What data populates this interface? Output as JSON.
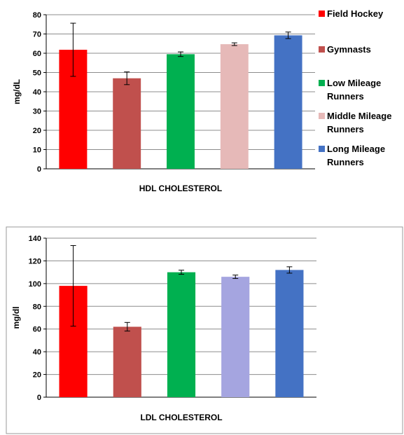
{
  "chart_data": [
    {
      "type": "bar",
      "title": "",
      "xlabel": "HDL CHOLESTEROL",
      "ylabel": "mg/dL",
      "ylim": [
        0,
        80
      ],
      "yticks": [
        0,
        10,
        20,
        30,
        40,
        50,
        60,
        70,
        80
      ],
      "grid": true,
      "legend": "right",
      "categories": [
        "Field Hockey",
        "Gymnasts",
        "Low Mileage Runners",
        "Middle Mileage Runners",
        "Long Mileage Runners"
      ],
      "colors": [
        "#ff0000",
        "#c0504d",
        "#00b050",
        "#e6b9b8",
        "#4472c4"
      ],
      "values": [
        61.8,
        47,
        59.5,
        64.7,
        69.3
      ],
      "error": [
        13.8,
        3.3,
        1.2,
        0.7,
        1.7
      ]
    },
    {
      "type": "bar",
      "title": "",
      "xlabel": "LDL CHOLESTEROL",
      "ylabel": "mg/dl",
      "ylim": [
        0,
        140
      ],
      "yticks": [
        0,
        20,
        40,
        60,
        80,
        100,
        120,
        140
      ],
      "grid": true,
      "categories": [
        "Field Hockey",
        "Gymnasts",
        "Low Mileage Runners",
        "Middle Mileage Runners",
        "Long Mileage Runners"
      ],
      "colors": [
        "#ff0000",
        "#c0504d",
        "#00b050",
        "#a5a5e0",
        "#4472c4"
      ],
      "values": [
        98,
        62,
        110,
        106,
        112
      ],
      "error": [
        35.5,
        3.8,
        1.8,
        1.5,
        2.8
      ]
    }
  ],
  "legend": {
    "items": [
      {
        "lines": [
          "Field Hockey"
        ],
        "color": "#ff0000"
      },
      {
        "lines": [
          "Gymnasts"
        ],
        "color": "#c0504d"
      },
      {
        "lines": [
          "Low Mileage",
          "Runners"
        ],
        "color": "#00b050"
      },
      {
        "lines": [
          "Middle Mileage",
          "Runners"
        ],
        "color": "#e6b9b8"
      },
      {
        "lines": [
          "Long Mileage",
          "Runners"
        ],
        "color": "#4472c4"
      }
    ]
  }
}
